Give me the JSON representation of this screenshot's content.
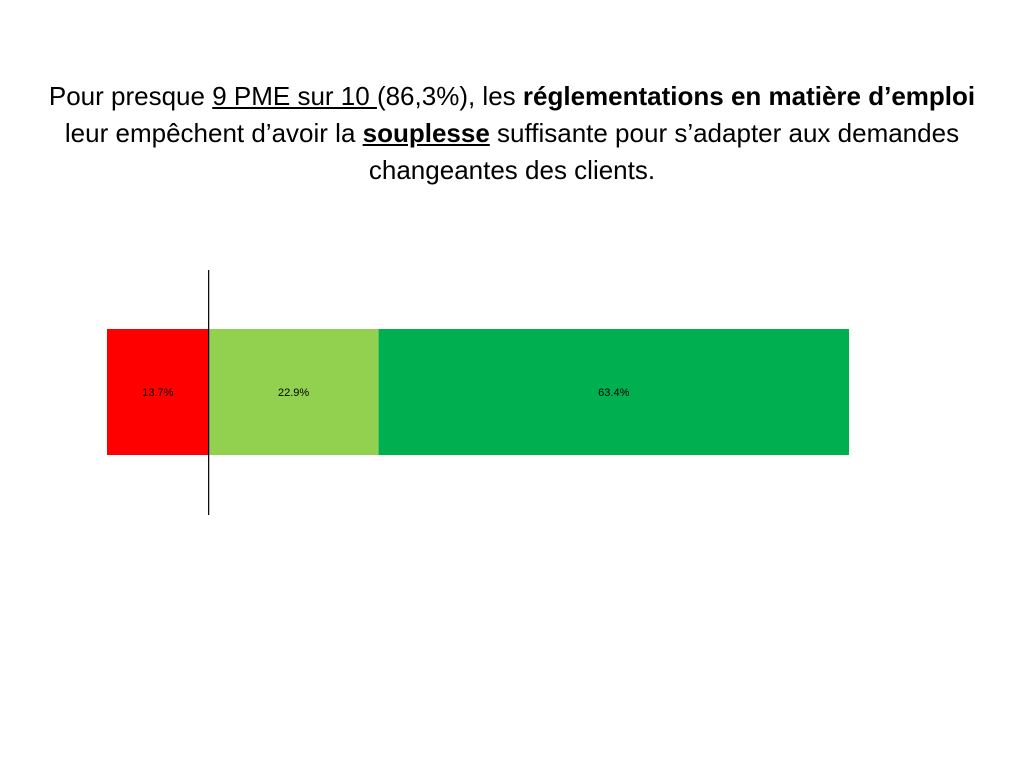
{
  "headline": {
    "part1": "Pour presque ",
    "part2": "9 PME sur 10 ",
    "part3": "(86,3%), les ",
    "part4": "réglementations en matière d’emploi",
    "part5": " leur empêchent d’avoir la ",
    "part6": "souplesse",
    "part7": " suffisante pour s’adapter aux demandes changeantes des clients."
  },
  "chart_data": {
    "type": "bar",
    "orientation": "horizontal",
    "stacked": true,
    "unit": "%",
    "xlim": [
      -13.7,
      86.3
    ],
    "reference_line_at": 0,
    "series": [
      {
        "value": -13.7,
        "label": "13.7%",
        "color": "#ff0000"
      },
      {
        "value": 22.9,
        "label": "22.9%",
        "color": "#92d050"
      },
      {
        "value": 63.4,
        "label": "63.4%",
        "color": "#00b050"
      }
    ]
  }
}
